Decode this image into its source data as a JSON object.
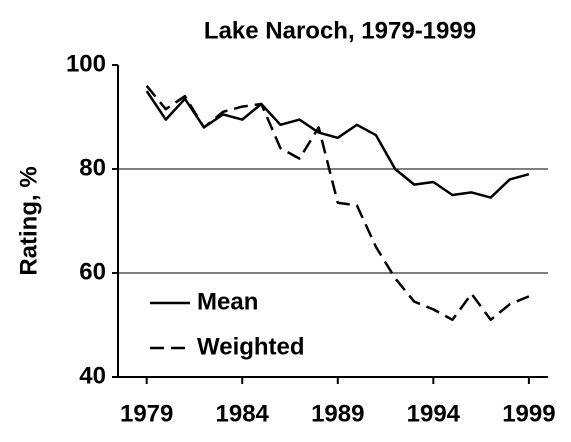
{
  "chart_data": {
    "type": "line",
    "title": "Lake Naroch, 1979-1999",
    "y_label": "Rating, %",
    "x": [
      1979,
      1980,
      1981,
      1982,
      1983,
      1984,
      1985,
      1986,
      1987,
      1988,
      1989,
      1990,
      1991,
      1992,
      1993,
      1994,
      1995,
      1996,
      1997,
      1998,
      1999
    ],
    "series": [
      {
        "name": "Mean",
        "color": "#000000",
        "dash": false,
        "values": [
          95,
          89.5,
          93.5,
          88,
          90.5,
          89.5,
          92.5,
          88.5,
          89.5,
          87,
          86,
          88.5,
          86.5,
          80,
          77,
          77.5,
          75,
          75.5,
          74.5,
          78,
          79
        ]
      },
      {
        "name": "Weighted",
        "color": "#000000",
        "dash": true,
        "values": [
          96,
          91.5,
          94,
          88,
          91,
          92,
          92.5,
          84,
          82,
          88,
          73.5,
          73,
          65,
          59,
          54.5,
          53,
          51,
          56,
          51,
          54,
          55.5
        ]
      }
    ],
    "xlim": [
      1977.5,
      2000
    ],
    "xticks": [
      1979,
      1984,
      1989,
      1994,
      1999
    ],
    "ylim": [
      40,
      100
    ],
    "yticks": [
      40,
      60,
      80,
      100
    ],
    "grid": true,
    "legend": "lower left"
  }
}
